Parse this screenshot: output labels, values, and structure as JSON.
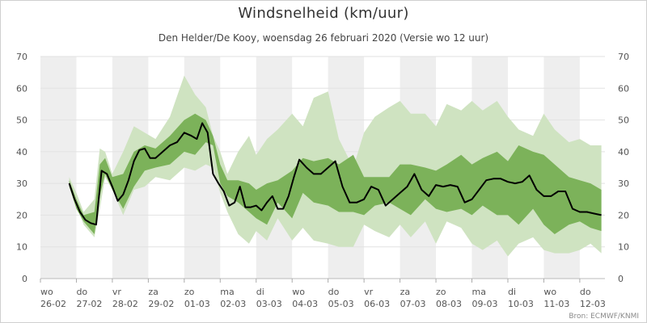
{
  "chart_data": {
    "type": "area",
    "title": "Windsnelheid (km/uur)",
    "subtitle": "Den Helder/De Kooy, woensdag 26 februari 2020 (Versie wo 12 uur)",
    "source": "Bron: ECMWF/KNMI",
    "ylim": [
      0,
      70
    ],
    "yticks": [
      0,
      10,
      20,
      30,
      40,
      50,
      60,
      70
    ],
    "x_unit": "days since 2020-02-26 00:00",
    "xlim": [
      0,
      15.7
    ],
    "day_labels": [
      {
        "day": "wo",
        "date": "26-02"
      },
      {
        "day": "do",
        "date": "27-02"
      },
      {
        "day": "vr",
        "date": "28-02"
      },
      {
        "day": "za",
        "date": "29-02"
      },
      {
        "day": "zo",
        "date": "01-03"
      },
      {
        "day": "ma",
        "date": "02-03"
      },
      {
        "day": "di",
        "date": "03-03"
      },
      {
        "day": "wo",
        "date": "04-03"
      },
      {
        "day": "do",
        "date": "05-03"
      },
      {
        "day": "vr",
        "date": "06-03"
      },
      {
        "day": "za",
        "date": "07-03"
      },
      {
        "day": "zo",
        "date": "08-03"
      },
      {
        "day": "ma",
        "date": "09-03"
      },
      {
        "day": "di",
        "date": "10-03"
      },
      {
        "day": "wo",
        "date": "11-03"
      },
      {
        "day": "do",
        "date": "12-03"
      }
    ],
    "colors": {
      "band_bg": "#eeeeee",
      "outer_band": "#cfe3c1",
      "inner_band": "#7cb25a",
      "median": "#000000"
    },
    "series": [
      {
        "name": "outer",
        "x": [
          0.8,
          1.0,
          1.2,
          1.5,
          1.65,
          1.8,
          2.0,
          2.3,
          2.6,
          2.9,
          3.2,
          3.6,
          4.0,
          4.3,
          4.6,
          4.8,
          5.0,
          5.2,
          5.5,
          5.8,
          6.0,
          6.3,
          6.6,
          7.0,
          7.3,
          7.6,
          8.0,
          8.3,
          8.7,
          9.0,
          9.3,
          9.7,
          10.0,
          10.3,
          10.7,
          11.0,
          11.3,
          11.7,
          12.0,
          12.3,
          12.7,
          13.0,
          13.3,
          13.7,
          14.0,
          14.3,
          14.7,
          15.0,
          15.3,
          15.6
        ],
        "low": [
          30,
          23,
          17,
          13,
          22,
          32,
          28,
          20,
          28,
          29,
          32,
          31,
          35,
          34,
          36,
          35,
          27,
          21,
          14,
          11,
          15,
          12,
          19,
          12,
          16,
          12,
          11,
          10,
          10,
          17,
          15,
          13,
          17,
          13,
          18,
          11,
          18,
          16,
          11,
          9,
          12,
          7,
          11,
          13,
          9,
          8,
          8,
          9,
          11,
          8
        ],
        "high": [
          32,
          27,
          21,
          25,
          41,
          40,
          33,
          40,
          48,
          46,
          44,
          51,
          64,
          58,
          54,
          45,
          40,
          33,
          40,
          45,
          39,
          44,
          47,
          52,
          48,
          57,
          59,
          44,
          35,
          46,
          51,
          54,
          56,
          52,
          52,
          48,
          55,
          53,
          56,
          53,
          56,
          51,
          47,
          45,
          52,
          47,
          43,
          44,
          42,
          42
        ]
      },
      {
        "name": "inner",
        "x": [
          0.8,
          1.0,
          1.2,
          1.5,
          1.65,
          1.8,
          2.0,
          2.3,
          2.6,
          2.9,
          3.2,
          3.6,
          4.0,
          4.3,
          4.6,
          4.8,
          5.0,
          5.2,
          5.5,
          5.8,
          6.0,
          6.3,
          6.6,
          7.0,
          7.3,
          7.6,
          8.0,
          8.3,
          8.7,
          9.0,
          9.3,
          9.7,
          10.0,
          10.3,
          10.7,
          11.0,
          11.3,
          11.7,
          12.0,
          12.3,
          12.7,
          13.0,
          13.3,
          13.7,
          14.0,
          14.3,
          14.7,
          15.0,
          15.3,
          15.6
        ],
        "low": [
          29,
          22,
          18,
          14,
          26,
          33,
          28,
          22,
          29,
          34,
          35,
          36,
          40,
          39,
          43,
          42,
          30,
          26,
          24,
          21,
          19,
          17,
          24,
          19,
          27,
          24,
          23,
          21,
          21,
          20,
          23,
          24,
          22,
          20,
          25,
          22,
          21,
          22,
          20,
          23,
          20,
          20,
          17,
          22,
          17,
          14,
          17,
          18,
          16,
          15
        ],
        "high": [
          31,
          25,
          20,
          21,
          36,
          38,
          32,
          33,
          40,
          42,
          41,
          45,
          50,
          52,
          50,
          45,
          36,
          31,
          31,
          30,
          28,
          30,
          31,
          34,
          38,
          37,
          38,
          36,
          39,
          32,
          32,
          32,
          36,
          36,
          35,
          34,
          36,
          39,
          36,
          38,
          40,
          37,
          42,
          40,
          39,
          36,
          32,
          31,
          30,
          28
        ]
      },
      {
        "name": "median",
        "x": [
          0.8,
          0.95,
          1.1,
          1.25,
          1.4,
          1.55,
          1.7,
          1.85,
          2.0,
          2.15,
          2.3,
          2.45,
          2.6,
          2.75,
          2.9,
          3.05,
          3.2,
          3.4,
          3.6,
          3.8,
          4.0,
          4.2,
          4.35,
          4.5,
          4.65,
          4.8,
          4.95,
          5.1,
          5.25,
          5.4,
          5.55,
          5.7,
          5.85,
          6.0,
          6.15,
          6.3,
          6.45,
          6.6,
          6.75,
          6.9,
          7.05,
          7.2,
          7.4,
          7.6,
          7.8,
          8.0,
          8.2,
          8.4,
          8.6,
          8.8,
          9.0,
          9.2,
          9.4,
          9.6,
          9.8,
          10.0,
          10.2,
          10.4,
          10.6,
          10.8,
          11.0,
          11.2,
          11.4,
          11.6,
          11.8,
          12.0,
          12.2,
          12.4,
          12.6,
          12.8,
          13.0,
          13.2,
          13.4,
          13.6,
          13.8,
          14.0,
          14.2,
          14.4,
          14.6,
          14.8,
          15.0,
          15.2,
          15.4,
          15.6
        ],
        "values": [
          30,
          25,
          21,
          18.5,
          17.5,
          17,
          34,
          33,
          29,
          24.5,
          26.5,
          31,
          37,
          40.5,
          41,
          38,
          38,
          40,
          42,
          43,
          46,
          45,
          44,
          49,
          46,
          33,
          30,
          27.5,
          23,
          24,
          29,
          22.5,
          22.5,
          23,
          21.5,
          24,
          26,
          22,
          22,
          26,
          32,
          37.5,
          35,
          33,
          33,
          35,
          37,
          29,
          24,
          24,
          25,
          29,
          28,
          23,
          25,
          27,
          29,
          33,
          28,
          26,
          29.5,
          29,
          29.5,
          29,
          24,
          25,
          28,
          31,
          31.5,
          31.5,
          30.5,
          30,
          30.5,
          32.5,
          28,
          26,
          26,
          27.5,
          27.5,
          22,
          21,
          21,
          20.5,
          20
        ]
      }
    ]
  }
}
